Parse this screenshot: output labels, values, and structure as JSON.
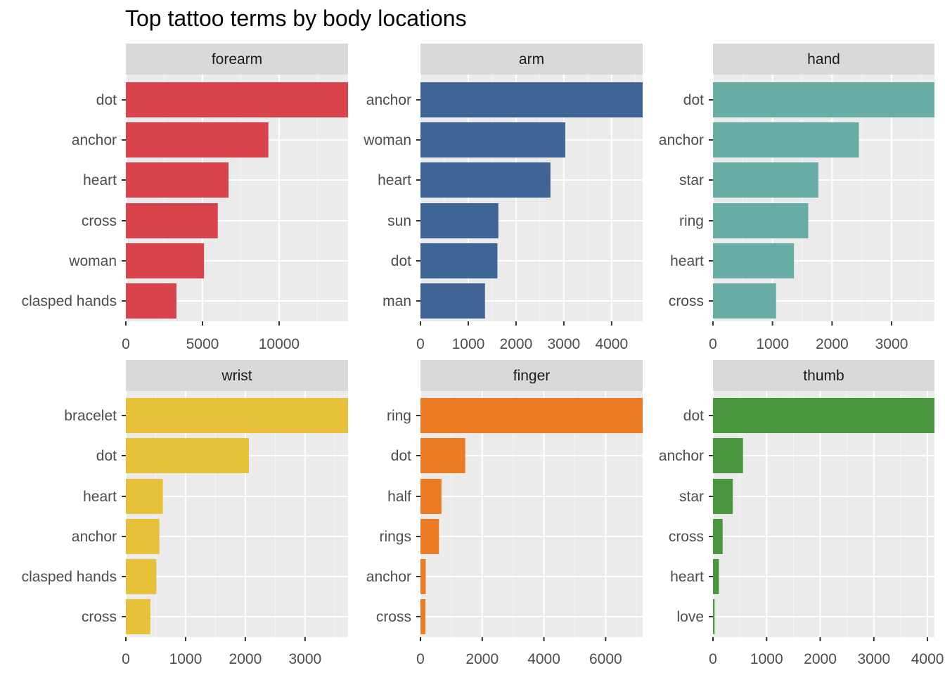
{
  "title": "Top tattoo terms by body locations",
  "chart_data": [
    {
      "type": "bar",
      "facet": "forearm",
      "color": "#D9434B",
      "categories": [
        "dot",
        "anchor",
        "heart",
        "cross",
        "woman",
        "clasped hands"
      ],
      "values": [
        14500,
        9300,
        6700,
        6000,
        5100,
        3300
      ],
      "xlim": [
        0,
        14500
      ],
      "ticks": [
        0,
        5000,
        10000
      ],
      "minor_ticks": [
        2500,
        7500,
        12500
      ]
    },
    {
      "type": "bar",
      "facet": "arm",
      "color": "#3F6496",
      "categories": [
        "anchor",
        "woman",
        "heart",
        "sun",
        "dot",
        "man"
      ],
      "values": [
        4650,
        3030,
        2720,
        1630,
        1610,
        1350
      ],
      "xlim": [
        0,
        4650
      ],
      "ticks": [
        0,
        1000,
        2000,
        3000,
        4000
      ],
      "minor_ticks": [
        500,
        1500,
        2500,
        3500,
        4500
      ]
    },
    {
      "type": "bar",
      "facet": "hand",
      "color": "#67ADA5",
      "categories": [
        "dot",
        "anchor",
        "star",
        "ring",
        "heart",
        "cross"
      ],
      "values": [
        3720,
        2450,
        1770,
        1600,
        1360,
        1060
      ],
      "xlim": [
        0,
        3720
      ],
      "ticks": [
        0,
        1000,
        2000,
        3000
      ],
      "minor_ticks": [
        500,
        1500,
        2500,
        3500
      ]
    },
    {
      "type": "bar",
      "facet": "wrist",
      "color": "#E8C13A",
      "categories": [
        "bracelet",
        "dot",
        "heart",
        "anchor",
        "clasped hands",
        "cross"
      ],
      "values": [
        3720,
        2060,
        620,
        560,
        510,
        410
      ],
      "xlim": [
        0,
        3720
      ],
      "ticks": [
        0,
        1000,
        2000,
        3000
      ],
      "minor_ticks": [
        500,
        1500,
        2500,
        3500
      ]
    },
    {
      "type": "bar",
      "facet": "finger",
      "color": "#EC7B25",
      "categories": [
        "ring",
        "dot",
        "half",
        "rings",
        "anchor",
        "cross"
      ],
      "values": [
        7200,
        1450,
        680,
        600,
        170,
        160
      ],
      "xlim": [
        0,
        7200
      ],
      "ticks": [
        0,
        2000,
        4000,
        6000
      ],
      "minor_ticks": [
        1000,
        3000,
        5000,
        7000
      ]
    },
    {
      "type": "bar",
      "facet": "thumb",
      "color": "#4A963F",
      "categories": [
        "dot",
        "anchor",
        "star",
        "cross",
        "heart",
        "love"
      ],
      "values": [
        4130,
        560,
        370,
        180,
        110,
        30
      ],
      "xlim": [
        0,
        4130
      ],
      "ticks": [
        0,
        1000,
        2000,
        3000,
        4000
      ],
      "minor_ticks": [
        500,
        1500,
        2500,
        3500
      ]
    }
  ]
}
